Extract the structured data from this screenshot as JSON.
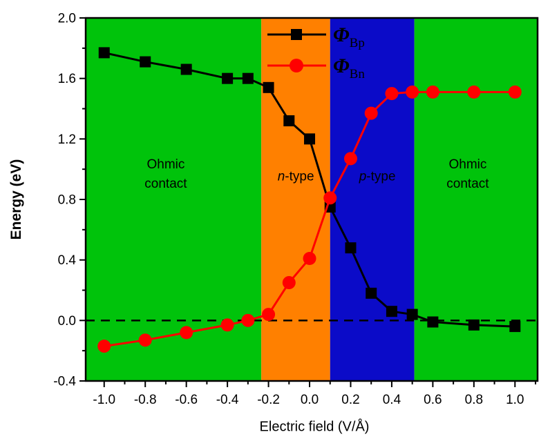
{
  "chart_data": {
    "type": "line",
    "title": "",
    "xlabel": "Electric field (V/Å)",
    "ylabel": "Energy (eV)",
    "xlim": [
      -1.09,
      1.11
    ],
    "ylim": [
      -0.4,
      2.0
    ],
    "x_ticks": [
      -1.0,
      -0.8,
      -0.6,
      -0.4,
      -0.2,
      0.0,
      0.2,
      0.4,
      0.6,
      0.8,
      1.0
    ],
    "x_tick_labels": [
      "-1.0",
      "-0.8",
      "-0.6",
      "-0.4",
      "-0.2",
      "0.0",
      "0.2",
      "0.4",
      "0.6",
      "0.8",
      "1.0"
    ],
    "y_ticks": [
      -0.4,
      0.0,
      0.4,
      0.8,
      1.2,
      1.6,
      2.0
    ],
    "y_tick_labels": [
      "-0.4",
      "0.0",
      "0.4",
      "0.8",
      "1.2",
      "1.6",
      "2.0"
    ],
    "x_minor_step": 0.1,
    "y_minor_step": 0.2,
    "grid": false,
    "legend_position": "top-center-inside",
    "zero_line": {
      "y": 0.0,
      "style": "dashed",
      "color": "#000000"
    },
    "regions": [
      {
        "label": "Ohmic contact",
        "label_lines": [
          "Ohmic",
          "contact"
        ],
        "x_start": -1.09,
        "x_end": -0.235,
        "color": "#00c30b",
        "label_x": -0.7,
        "label_y": 0.97
      },
      {
        "label": "n-type",
        "italic_part": "n",
        "rest_part": "-type",
        "x_start": -0.235,
        "x_end": 0.1,
        "color": "#ff8000",
        "label_x": -0.067,
        "label_y": 0.954
      },
      {
        "label": "p-type",
        "italic_part": "p",
        "rest_part": "-type",
        "x_start": 0.1,
        "x_end": 0.51,
        "color": "#0b0bc8",
        "label_x": 0.33,
        "label_y": 0.954
      },
      {
        "label": "Ohmic contact",
        "label_lines": [
          "Ohmic",
          "contact"
        ],
        "x_start": 0.51,
        "x_end": 1.11,
        "color": "#00c30b",
        "label_x": 0.77,
        "label_y": 0.97
      }
    ],
    "series": [
      {
        "name": "ΦBp",
        "legend_symbol": "Φ",
        "legend_subscript": "Bp",
        "color": "#000000",
        "marker": "square",
        "x": [
          -1.0,
          -0.8,
          -0.6,
          -0.4,
          -0.3,
          -0.2,
          -0.1,
          0.0,
          0.1,
          0.2,
          0.3,
          0.4,
          0.5,
          0.6,
          0.8,
          1.0
        ],
        "y": [
          1.77,
          1.71,
          1.66,
          1.6,
          1.6,
          1.54,
          1.32,
          1.2,
          0.75,
          0.48,
          0.18,
          0.06,
          0.04,
          -0.01,
          -0.03,
          -0.04
        ]
      },
      {
        "name": "ΦBn",
        "legend_symbol": "Φ",
        "legend_subscript": "Bn",
        "color": "#ff0000",
        "marker": "circle",
        "x": [
          -1.0,
          -0.8,
          -0.6,
          -0.4,
          -0.3,
          -0.2,
          -0.1,
          0.0,
          0.1,
          0.2,
          0.3,
          0.4,
          0.5,
          0.6,
          0.8,
          1.0
        ],
        "y": [
          -0.17,
          -0.13,
          -0.08,
          -0.03,
          0.0,
          0.04,
          0.25,
          0.41,
          0.81,
          1.07,
          1.37,
          1.5,
          1.51,
          1.51,
          1.51,
          1.51
        ]
      }
    ]
  }
}
